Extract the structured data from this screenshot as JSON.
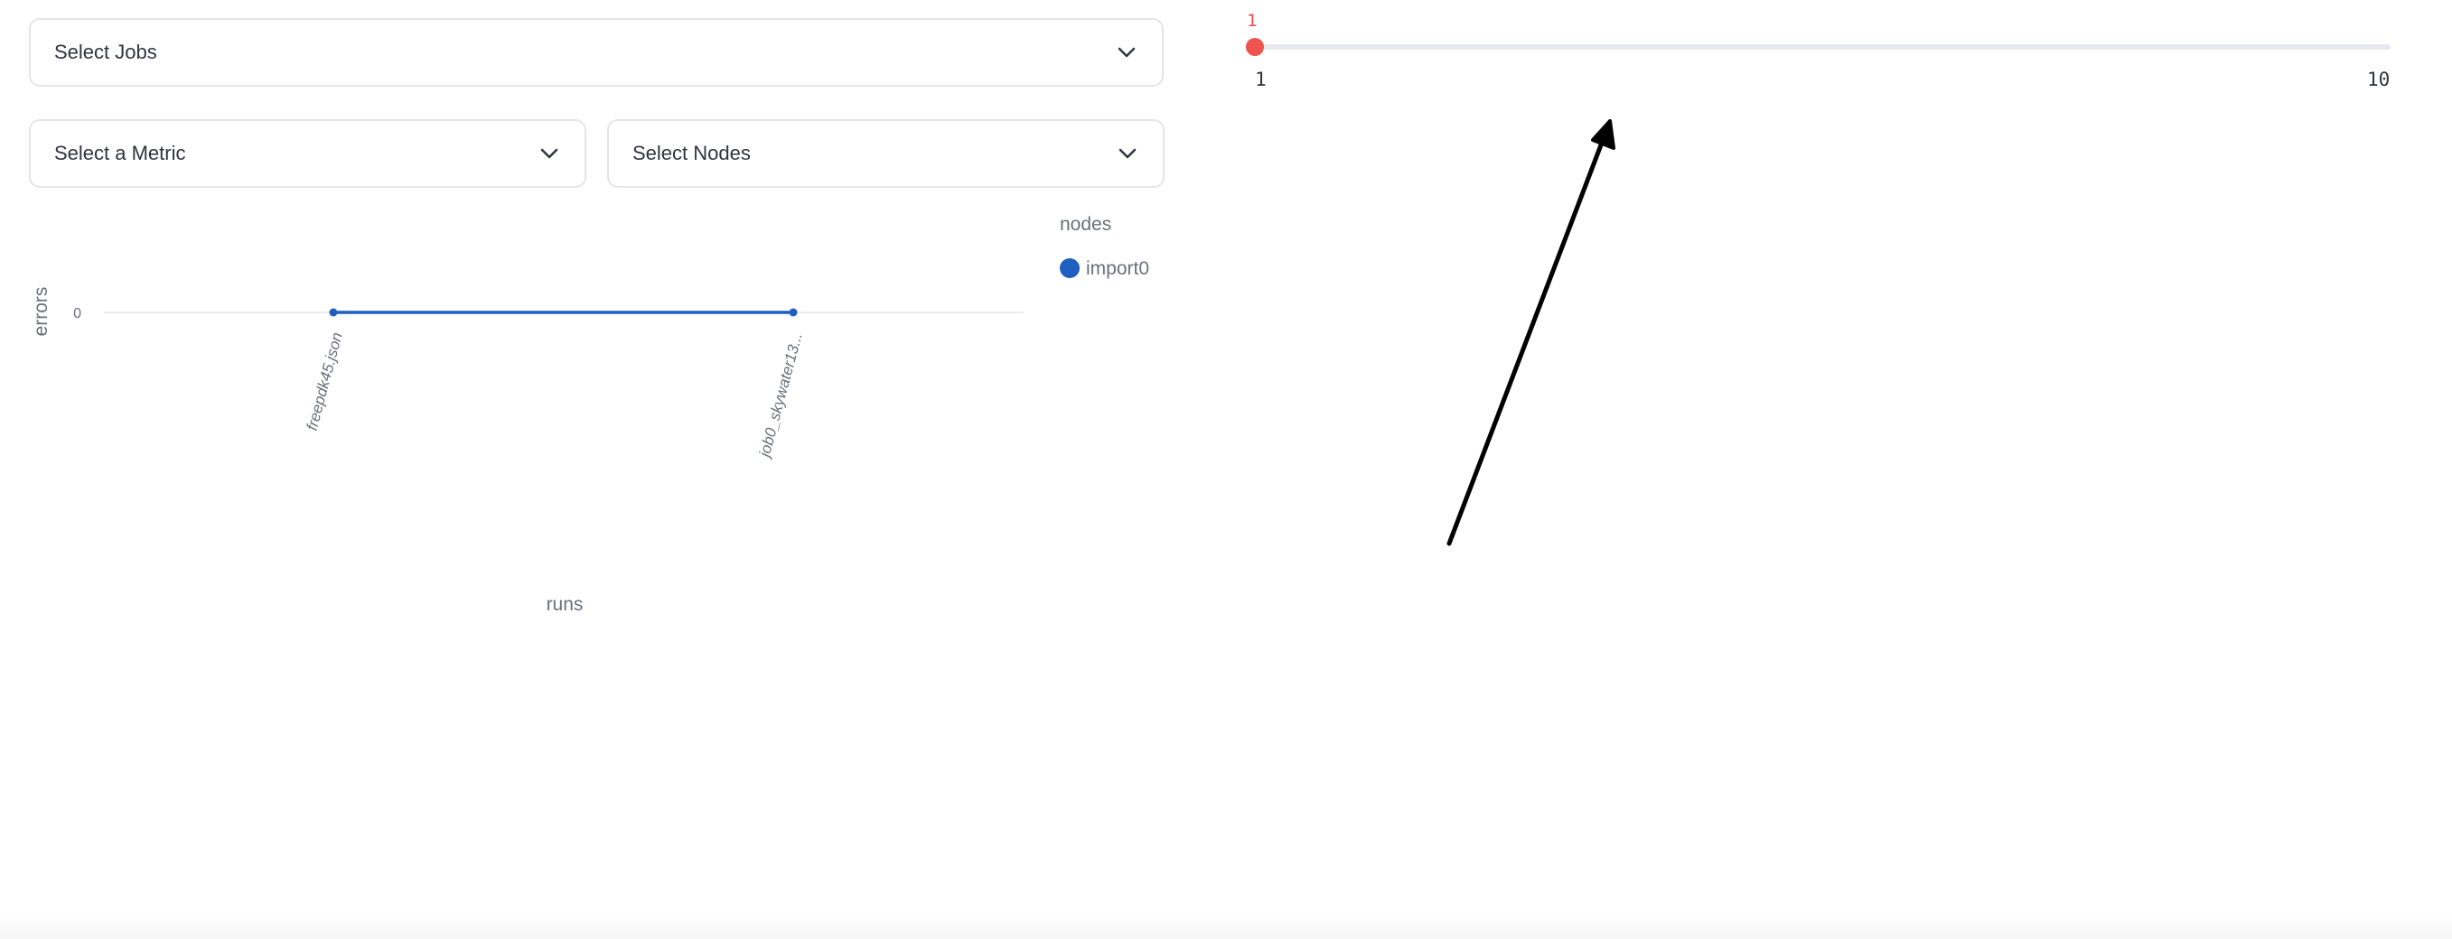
{
  "filters": {
    "jobs_placeholder": "Select Jobs",
    "metric_placeholder": "Select a Metric",
    "nodes_placeholder": "Select Nodes"
  },
  "slider": {
    "value": "1",
    "min_label": "1",
    "max_label": "10",
    "thumb_color": "#ef5350"
  },
  "chart_data": {
    "type": "line",
    "xlabel": "runs",
    "ylabel": "errors",
    "categories": [
      "freepdk45.json",
      "job0_skywater13..."
    ],
    "y_ticks": [
      "0"
    ],
    "legend_title": "nodes",
    "series": [
      {
        "name": "import0",
        "color": "#1f5fbf",
        "values": [
          0,
          0
        ]
      }
    ]
  },
  "icons": {
    "dropdown": "chevron-down-icon"
  }
}
